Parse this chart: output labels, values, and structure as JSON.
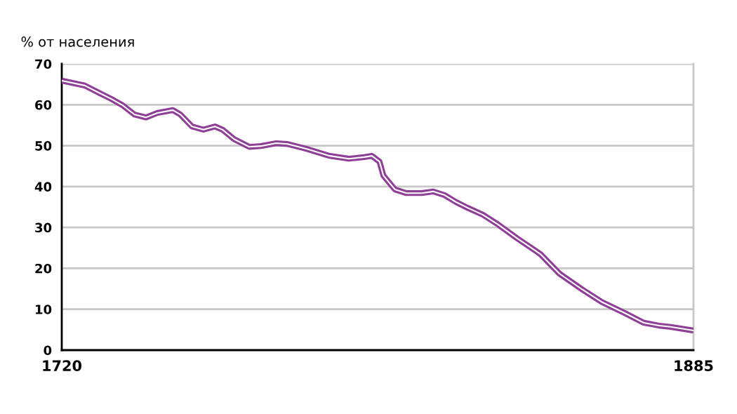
{
  "chart_data": {
    "type": "line",
    "ylabel": "% от населения",
    "x": [
      1720,
      1726,
      1730,
      1733,
      1736,
      1739,
      1742,
      1745,
      1749,
      1751,
      1754,
      1757,
      1760,
      1762,
      1765,
      1769,
      1772,
      1776,
      1779,
      1784,
      1790,
      1795,
      1799,
      1801,
      1803,
      1804,
      1807,
      1810,
      1814,
      1817,
      1820,
      1823,
      1826,
      1830,
      1834,
      1839,
      1845,
      1850,
      1856,
      1861,
      1867,
      1872,
      1876,
      1879,
      1885
    ],
    "series": [
      {
        "color": "#8e3f96",
        "values": [
          65.9,
          64.7,
          62.8,
          61.4,
          59.8,
          57.6,
          56.9,
          58,
          58.7,
          57.6,
          54.7,
          53.9,
          54.7,
          53.9,
          51.6,
          49.7,
          49.9,
          50.6,
          50.4,
          49.2,
          47.5,
          46.8,
          47.2,
          47.5,
          46.1,
          42.7,
          39.3,
          38.4,
          38.4,
          38.8,
          37.9,
          36.2,
          34.8,
          33.1,
          30.7,
          27.3,
          23.5,
          18.7,
          14.8,
          11.8,
          9.1,
          6.7,
          6.0,
          5.7,
          4.8
        ]
      }
    ],
    "xlim": [
      1720,
      1885
    ],
    "xticks": [
      1720,
      1885
    ],
    "ylim": [
      0,
      70
    ],
    "yticks": [
      0,
      10,
      20,
      30,
      40,
      50,
      60,
      70
    ],
    "grid": "y",
    "marker": "none",
    "line_style": "solid"
  }
}
